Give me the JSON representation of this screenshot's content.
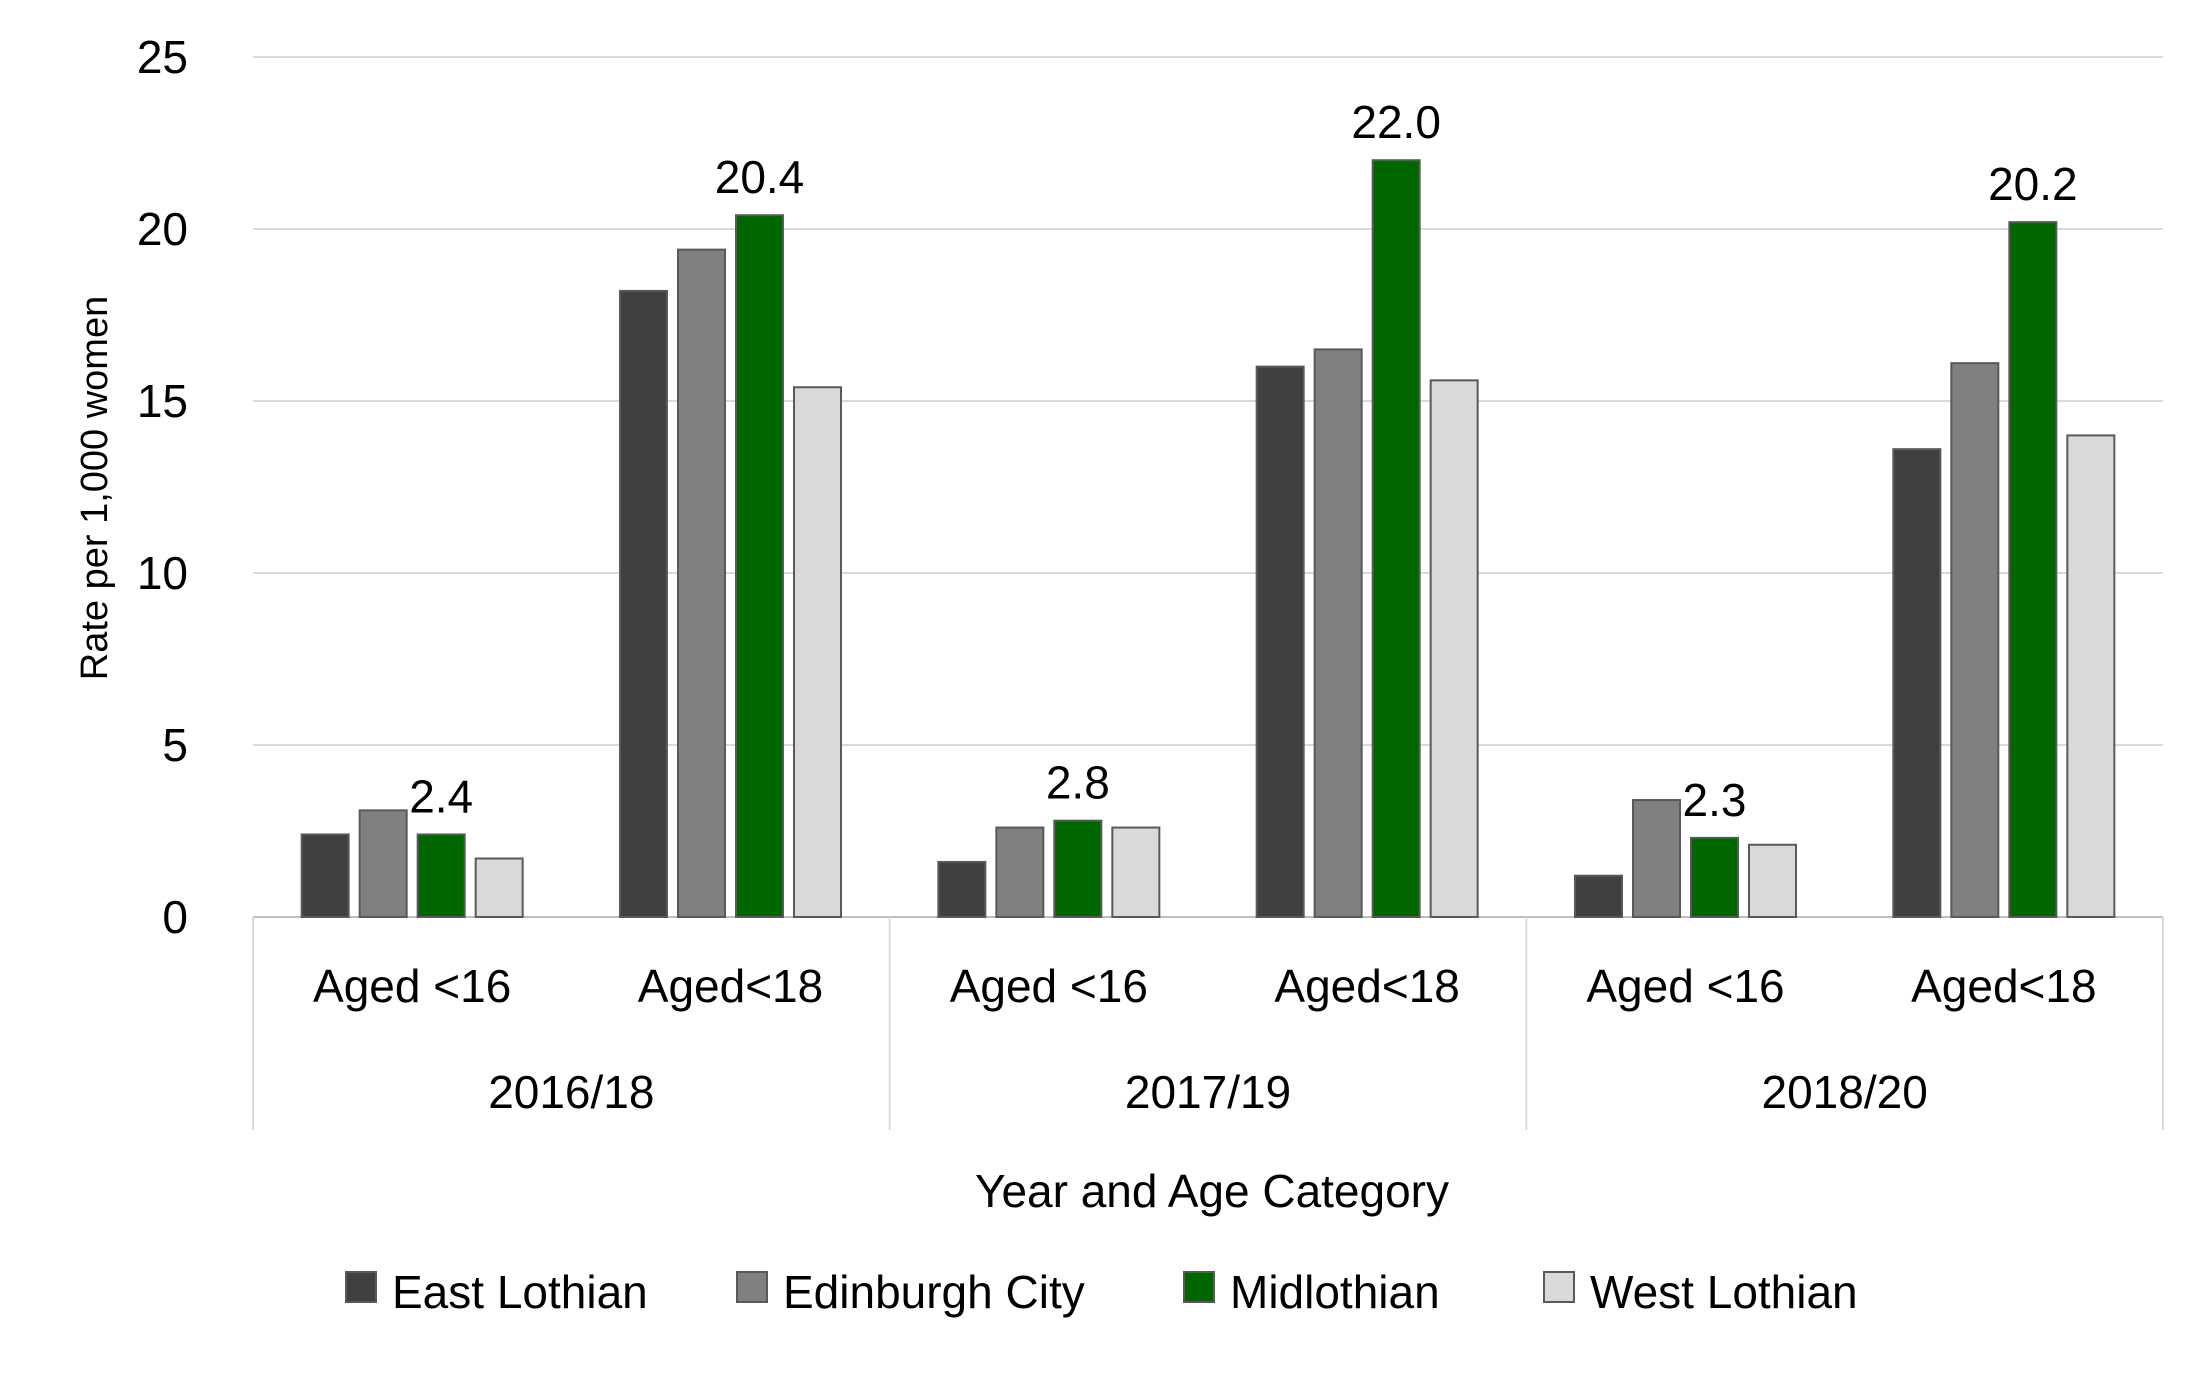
{
  "chart_data": {
    "type": "bar",
    "title": "",
    "xlabel": "Year and Age Category",
    "ylabel": "Rate per 1,000 women",
    "ylim": [
      0,
      25
    ],
    "yticks": [
      0,
      5,
      10,
      15,
      20,
      25
    ],
    "grid": true,
    "legend_position": "bottom",
    "groups": [
      "2016/18",
      "2017/19",
      "2018/20"
    ],
    "categories": [
      "Aged <16",
      "Aged<18",
      "Aged <16",
      "Aged<18",
      "Aged <16",
      "Aged<18"
    ],
    "series": [
      {
        "name": "East Lothian",
        "color": "#404040",
        "values": [
          2.4,
          18.2,
          1.6,
          16.0,
          1.2,
          13.6
        ]
      },
      {
        "name": "Edinburgh City",
        "color": "#808080",
        "values": [
          3.1,
          19.4,
          2.6,
          16.5,
          3.4,
          16.1
        ]
      },
      {
        "name": "Midlothian",
        "color": "#006600",
        "values": [
          2.4,
          20.4,
          2.8,
          22.0,
          2.3,
          20.2
        ]
      },
      {
        "name": "West Lothian",
        "color": "#d9d9d9",
        "values": [
          1.7,
          15.4,
          2.6,
          15.6,
          2.1,
          14.0
        ]
      }
    ],
    "data_labels": {
      "series": "Midlothian",
      "labels": [
        "2.4",
        "20.4",
        "2.8",
        "22.0",
        "2.3",
        "20.2"
      ]
    }
  }
}
